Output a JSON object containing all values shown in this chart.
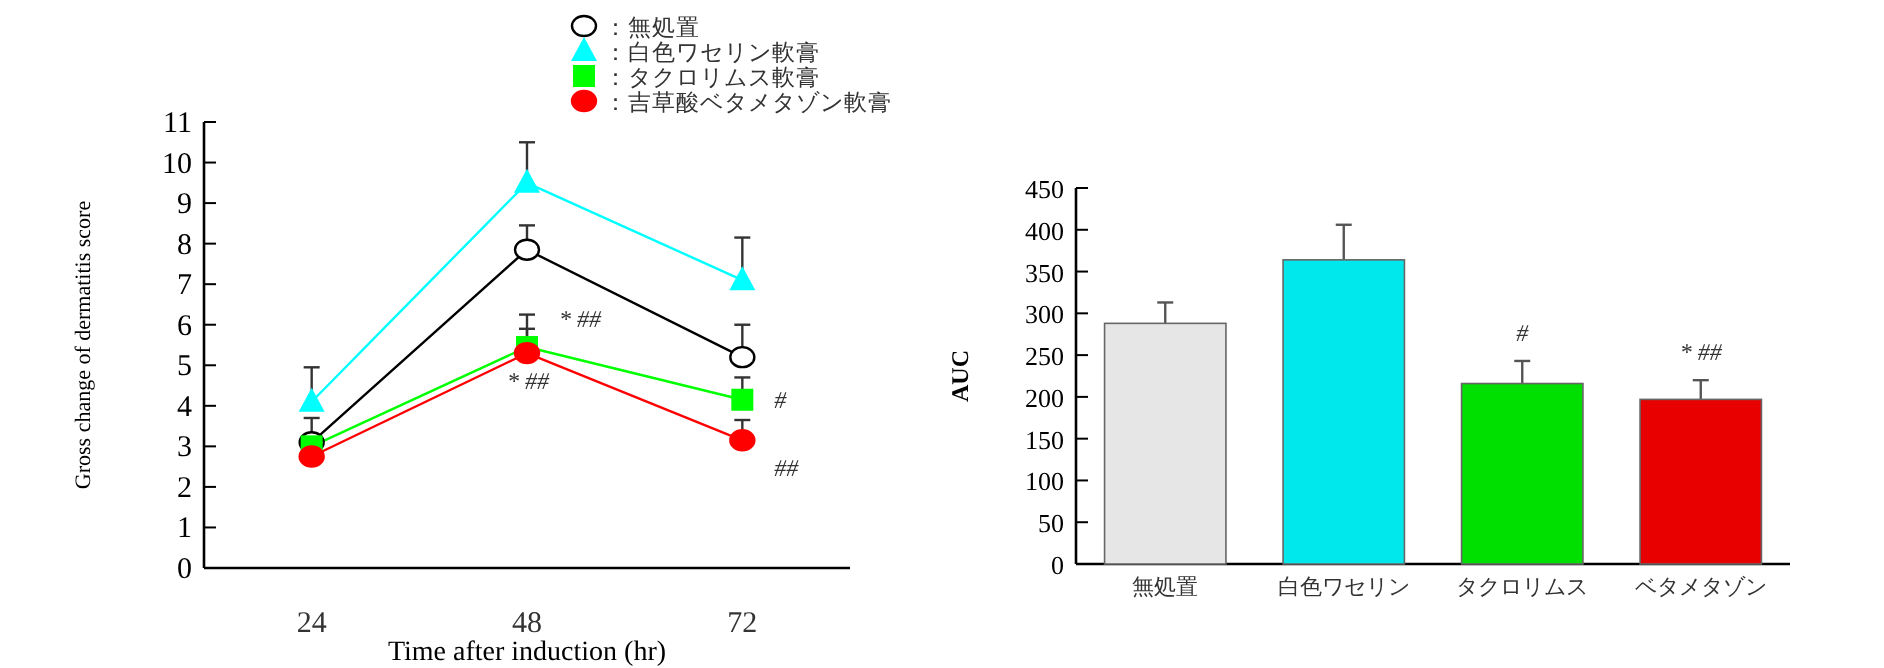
{
  "chart_data": [
    {
      "type": "line",
      "categories": [
        "24",
        "48",
        "72"
      ],
      "xlabel": "Time after induction (hr)",
      "ylabel": "Gross change of dermatitis score",
      "ylim": [
        0,
        11
      ],
      "yticks": [
        0,
        1,
        2,
        3,
        4,
        5,
        6,
        7,
        8,
        9,
        10,
        11
      ],
      "legend": "top",
      "grid": false,
      "series": [
        {
          "name": "：無処置",
          "color": "#000000",
          "marker": "circle",
          "values": [
            3.1,
            7.85,
            5.2
          ],
          "errors": [
            [
              3.1,
              3.7
            ],
            [
              7.85,
              8.45
            ],
            [
              5.2,
              6.0
            ]
          ]
        },
        {
          "name": "：白色ワセリン軟膏",
          "color": "#00ffff",
          "marker": "triangle",
          "values": [
            4.1,
            9.5,
            7.1
          ],
          "errors": [
            [
              4.1,
              4.95
            ],
            [
              9.5,
              10.5
            ],
            [
              7.1,
              8.15
            ]
          ]
        },
        {
          "name": "：タクロリムス軟膏",
          "color": "#00ff00",
          "marker": "square",
          "values": [
            3.0,
            5.45,
            4.15
          ],
          "errors": [
            null,
            [
              5.45,
              6.25
            ],
            [
              4.15,
              4.7
            ]
          ]
        },
        {
          "name": "：吉草酸ベタメタゾン軟膏",
          "color": "#ff0000",
          "marker": "circle",
          "values": [
            2.75,
            5.3,
            3.15
          ],
          "errors": [
            null,
            [
              5.3,
              5.9
            ],
            [
              3.15,
              3.65
            ]
          ]
        }
      ],
      "annotations": [
        {
          "text": "* ##",
          "x": "48",
          "y": 5.45
        },
        {
          "text": "* ##",
          "x": "48",
          "y": 5.3
        },
        {
          "text": "#",
          "x": "72",
          "y": 4.15
        },
        {
          "text": "##",
          "x": "72",
          "y": 3.15
        }
      ]
    },
    {
      "type": "bar",
      "categories": [
        "無処置",
        "白色ワセリン",
        "タクロリムス",
        "ベタメタゾン"
      ],
      "ylabel": "AUC",
      "ylim": [
        0,
        450
      ],
      "yticks": [
        0,
        50,
        100,
        150,
        200,
        250,
        300,
        350,
        400,
        450
      ],
      "grid": false,
      "values": [
        288,
        364,
        216,
        197
      ],
      "colors": [
        "#e6e6e6",
        "#00e8ec",
        "#00e000",
        "#e80000"
      ],
      "errors": [
        [
          288,
          313
        ],
        [
          364,
          406
        ],
        [
          216,
          243
        ],
        [
          197,
          220
        ]
      ],
      "annotations": [
        {
          "text": "#",
          "x": "タクロリムス",
          "y": 216
        },
        {
          "text": "* ##",
          "x": "ベタメタゾン",
          "y": 197
        }
      ]
    }
  ]
}
